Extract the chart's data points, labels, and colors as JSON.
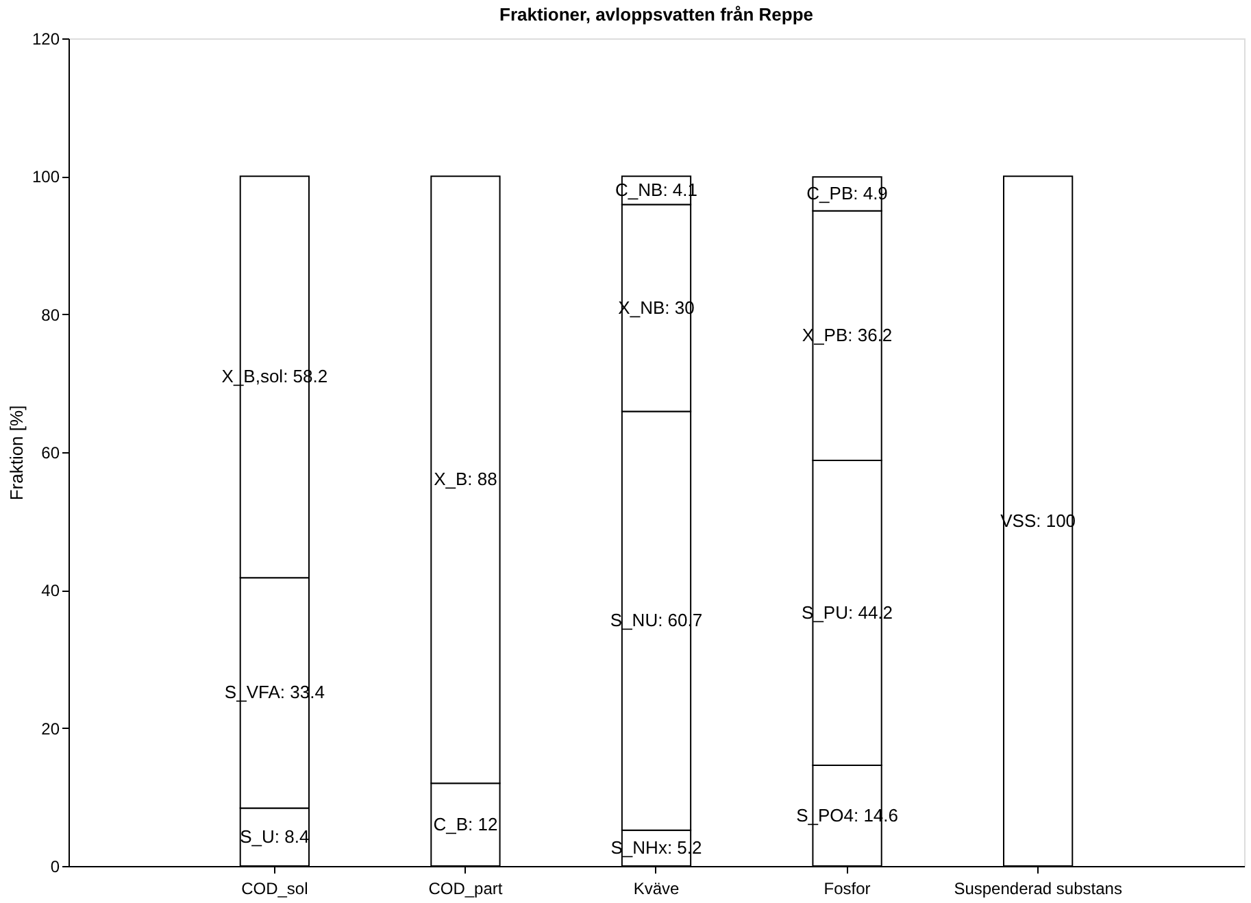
{
  "chart_data": {
    "type": "bar",
    "title": "Fraktioner, avloppsvatten från Reppe",
    "ylabel": "Fraktion [%]",
    "categories": [
      "COD_sol",
      "COD_part",
      "Kväve",
      "Fosfor",
      "Suspenderad substans"
    ],
    "stacked": true,
    "ylim": [
      0,
      120
    ],
    "yticks": [
      0,
      20,
      40,
      60,
      80,
      100,
      120
    ],
    "grid": false,
    "legend": false,
    "series": [
      {
        "color": "#ffffff",
        "values": [
          8.4,
          12,
          5.2,
          14.6,
          100
        ],
        "value_labels": [
          "S_U: 8.4",
          "C_B: 12",
          "S_NHx: 5.2",
          "S_PO4: 14.6",
          "VSS: 100"
        ]
      },
      {
        "color": "#ffffff",
        "values": [
          33.4,
          88,
          60.7,
          44.2,
          null
        ],
        "value_labels": [
          "S_VFA: 33.4",
          "X_B: 88",
          "S_NU: 60.7",
          "S_PU: 44.2",
          null
        ]
      },
      {
        "color": "#ffffff",
        "values": [
          58.2,
          null,
          30,
          36.2,
          null
        ],
        "value_labels": [
          "X_B,sol: 58.2",
          null,
          "X_NB: 30",
          "X_PB: 36.2",
          null
        ]
      },
      {
        "color": "#ffffff",
        "values": [
          null,
          null,
          4.1,
          4.9,
          null
        ],
        "value_labels": [
          null,
          null,
          "C_NB: 4.1",
          "C_PB: 4.9",
          null
        ]
      }
    ]
  }
}
